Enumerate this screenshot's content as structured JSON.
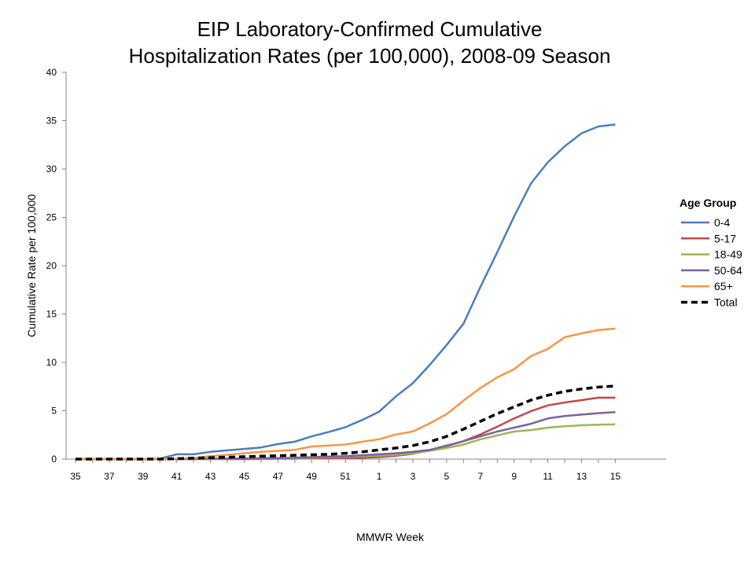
{
  "chart_data": {
    "type": "line",
    "title": "EIP Laboratory-Confirmed Cumulative\nHospitalization Rates (per 100,000), 2008-09 Season",
    "xlabel": "MMWR Week",
    "ylabel": "Cumulative Rate per 100,000",
    "ylim": [
      0,
      40
    ],
    "yticks": [
      0,
      5,
      10,
      15,
      20,
      25,
      30,
      35,
      40
    ],
    "xtick_labels": [
      "35",
      "37",
      "39",
      "41",
      "43",
      "45",
      "47",
      "49",
      "51",
      "1",
      "3",
      "5",
      "7",
      "9",
      "11",
      "13",
      "15"
    ],
    "categories": [
      "35",
      "36",
      "37",
      "38",
      "39",
      "40",
      "41",
      "42",
      "43",
      "44",
      "45",
      "46",
      "47",
      "48",
      "49",
      "50",
      "51",
      "52",
      "1",
      "2",
      "3",
      "4",
      "5",
      "6",
      "7",
      "8",
      "9",
      "10",
      "11",
      "12",
      "13",
      "14",
      "15"
    ],
    "grid": false,
    "legend_title": "Age Group",
    "legend_position": "right",
    "series": [
      {
        "name": "0-4",
        "color": "#4a7ebb",
        "dashed": false,
        "values": [
          0,
          0,
          0,
          0,
          0,
          0.05,
          0.5,
          0.5,
          0.75,
          0.9,
          1.05,
          1.2,
          1.55,
          1.8,
          2.35,
          2.8,
          3.3,
          4.05,
          4.9,
          6.5,
          7.85,
          9.75,
          11.8,
          14.0,
          17.8,
          21.4,
          25.1,
          28.5,
          30.7,
          32.35,
          33.7,
          34.4,
          34.6
        ]
      },
      {
        "name": "5-17",
        "color": "#be4b48",
        "dashed": false,
        "values": [
          0,
          0,
          0,
          0,
          0,
          0,
          0,
          0,
          0,
          0,
          0,
          0,
          0.05,
          0.05,
          0.1,
          0.1,
          0.15,
          0.15,
          0.2,
          0.35,
          0.55,
          0.9,
          1.35,
          1.85,
          2.55,
          3.35,
          4.2,
          4.95,
          5.55,
          5.85,
          6.1,
          6.35,
          6.35
        ]
      },
      {
        "name": "18-49",
        "color": "#98b954",
        "dashed": false,
        "values": [
          0,
          0,
          0,
          0,
          0,
          0,
          0,
          0,
          0,
          0.05,
          0.05,
          0.05,
          0.1,
          0.1,
          0.15,
          0.2,
          0.25,
          0.3,
          0.35,
          0.45,
          0.6,
          0.85,
          1.15,
          1.5,
          2.05,
          2.45,
          2.85,
          3.0,
          3.25,
          3.4,
          3.5,
          3.55,
          3.6
        ]
      },
      {
        "name": "50-64",
        "color": "#7d60a0",
        "dashed": false,
        "values": [
          0,
          0,
          0,
          0,
          0,
          0,
          0,
          0,
          0.05,
          0.05,
          0.05,
          0.1,
          0.1,
          0.15,
          0.2,
          0.25,
          0.3,
          0.4,
          0.5,
          0.6,
          0.75,
          0.95,
          1.4,
          1.85,
          2.35,
          2.85,
          3.25,
          3.65,
          4.2,
          4.45,
          4.6,
          4.75,
          4.85
        ]
      },
      {
        "name": "65+",
        "color": "#f79646",
        "dashed": false,
        "values": [
          0,
          0,
          0,
          0,
          0,
          0,
          0.05,
          0.1,
          0.3,
          0.45,
          0.6,
          0.75,
          0.85,
          0.95,
          1.3,
          1.4,
          1.5,
          1.8,
          2.05,
          2.55,
          2.85,
          3.7,
          4.65,
          6.05,
          7.35,
          8.45,
          9.3,
          10.65,
          11.4,
          12.6,
          13.0,
          13.35,
          13.5
        ]
      },
      {
        "name": "Total",
        "color": "#000000",
        "dashed": true,
        "values": [
          0,
          0,
          0,
          0,
          0,
          0,
          0.05,
          0.1,
          0.15,
          0.2,
          0.25,
          0.3,
          0.35,
          0.4,
          0.45,
          0.5,
          0.6,
          0.75,
          0.95,
          1.15,
          1.4,
          1.8,
          2.35,
          3.1,
          3.9,
          4.7,
          5.4,
          6.1,
          6.6,
          7.0,
          7.25,
          7.45,
          7.55
        ]
      }
    ]
  }
}
